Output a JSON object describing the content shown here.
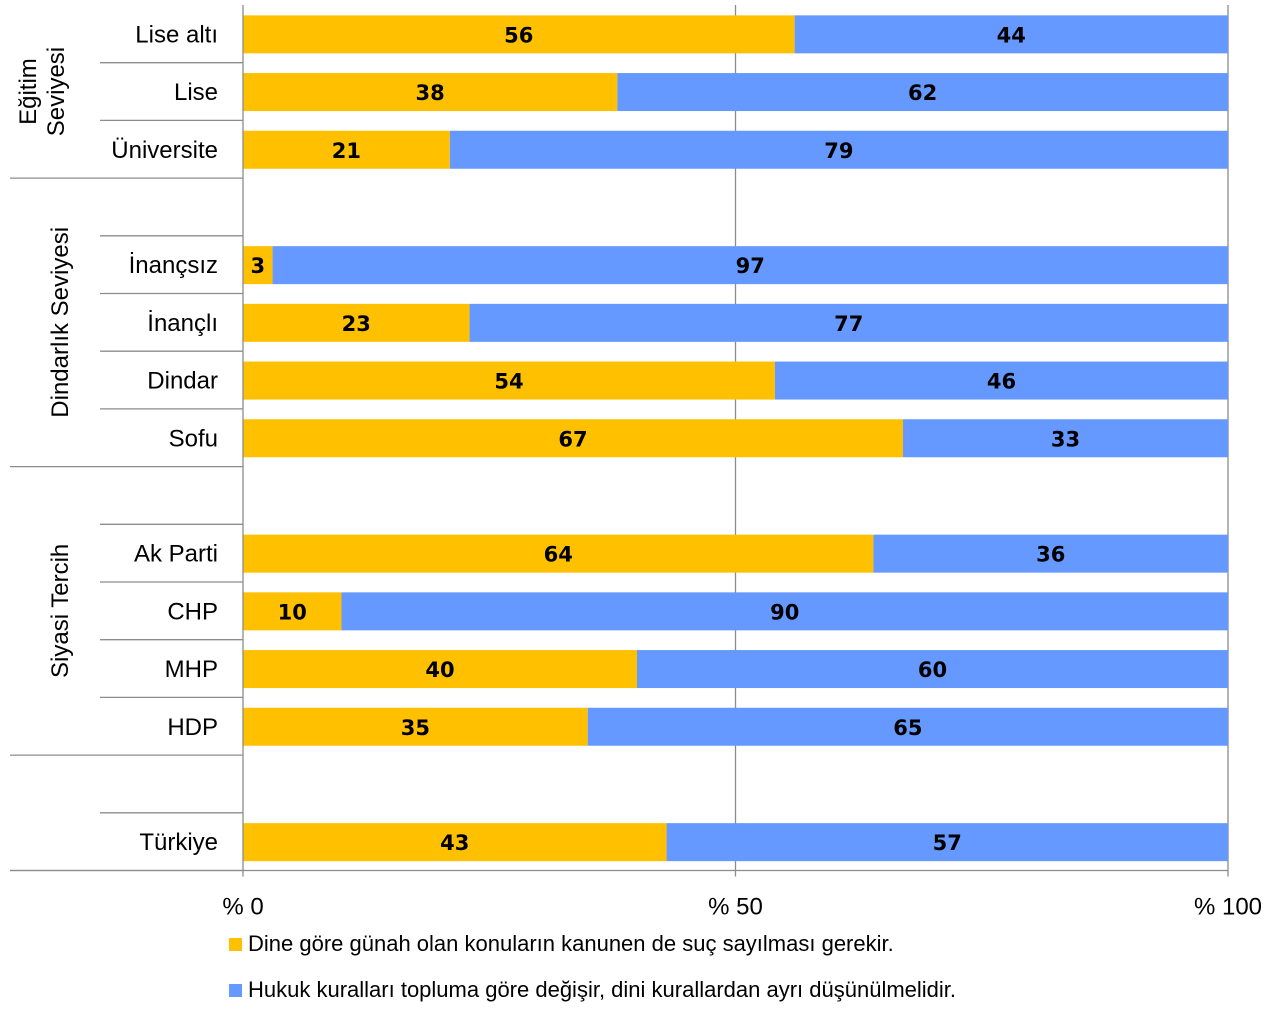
{
  "chart_data": {
    "type": "bar",
    "stacked": true,
    "orientation": "horizontal",
    "percent_axis": true,
    "xlim": [
      0,
      100
    ],
    "xticks": [
      {
        "value": 0,
        "label": "% 0"
      },
      {
        "value": 50,
        "label": "% 50"
      },
      {
        "value": 100,
        "label": "% 100"
      }
    ],
    "grid": "vertical",
    "legend_position": "bottom",
    "groups": [
      {
        "label": "Eğitim Seviyesi",
        "label_lines": [
          "Eğitim",
          "Seviyesi"
        ],
        "categories": [
          "Lise altı",
          "Lise",
          "Üniversite"
        ]
      },
      {
        "label": "Dindarlık Seviyesi",
        "label_lines": [
          "Dindarlık Seviyesi"
        ],
        "categories": [
          "İnançsız",
          "İnançlı",
          "Dindar",
          "Sofu"
        ]
      },
      {
        "label": "Siyasi Tercih",
        "label_lines": [
          "Siyasi Tercih"
        ],
        "categories": [
          "Ak Parti",
          "CHP",
          "MHP",
          "HDP"
        ]
      },
      {
        "label": "",
        "label_lines": [],
        "categories": [
          "Türkiye"
        ]
      }
    ],
    "rows": [
      "Lise altı",
      "Lise",
      "Üniversite",
      "",
      "İnançsız",
      "İnançlı",
      "Dindar",
      "Sofu",
      "",
      "Ak Parti",
      "CHP",
      "MHP",
      "HDP",
      "",
      "Türkiye"
    ],
    "series": [
      {
        "name": "Dine göre günah olan konuların kanunen de suç sayılması gerekir.",
        "color": "#FFC000",
        "values": [
          56,
          38,
          21,
          null,
          3,
          23,
          54,
          67,
          null,
          64,
          10,
          40,
          35,
          null,
          43
        ]
      },
      {
        "name": "Hukuk kuralları topluma göre değişir, dini kurallardan ayrı düşünülmelidir.",
        "color": "#6699FF",
        "values": [
          44,
          62,
          79,
          null,
          97,
          77,
          46,
          33,
          null,
          36,
          90,
          60,
          65,
          null,
          57
        ]
      }
    ]
  }
}
